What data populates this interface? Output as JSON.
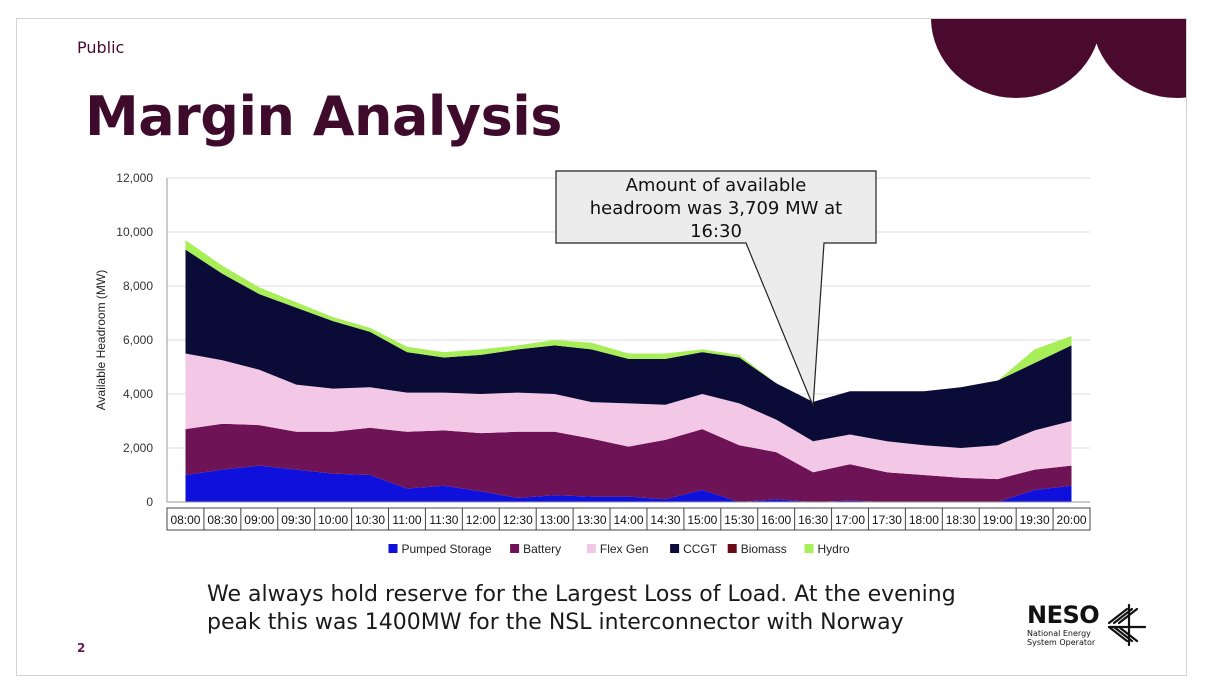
{
  "slide": {
    "classification": "Public",
    "title": "Margin Analysis",
    "caption_line1": "We always hold reserve for the Largest Loss of Load. At the evening",
    "caption_line2": "peak this was 1400MW for the NSL interconnector with Norway",
    "page_number": "2",
    "logo": {
      "word": "NESO",
      "sub_line1": "National Energy",
      "sub_line2": "System Operator",
      "icon": "union-flag-mark-icon"
    },
    "colors": {
      "title": "#3e0b2c",
      "decoration": "#4a0a2e"
    }
  },
  "chart_data": {
    "type": "area",
    "stacked": true,
    "ylabel": "Available Headroom (MW)",
    "xlabel": "",
    "ylim": [
      0,
      12000
    ],
    "yticks": [
      0,
      2000,
      4000,
      6000,
      8000,
      10000,
      12000
    ],
    "ytick_labels": [
      "0",
      "2,000",
      "4,000",
      "6,000",
      "8,000",
      "10,000",
      "12,000"
    ],
    "grid": true,
    "legend_position": "bottom",
    "categories": [
      "08:00",
      "08:30",
      "09:00",
      "09:30",
      "10:00",
      "10:30",
      "11:00",
      "11:30",
      "12:00",
      "12:30",
      "13:00",
      "13:30",
      "14:00",
      "14:30",
      "15:00",
      "15:30",
      "16:00",
      "16:30",
      "17:00",
      "17:30",
      "18:00",
      "18:30",
      "19:00",
      "19:30",
      "20:00"
    ],
    "series": [
      {
        "name": "Pumped Storage",
        "color": "#1010dd",
        "values": [
          1000,
          1200,
          1350,
          1200,
          1050,
          1000,
          500,
          600,
          400,
          150,
          250,
          200,
          200,
          100,
          450,
          0,
          100,
          0,
          50,
          0,
          0,
          0,
          0,
          450,
          600
        ]
      },
      {
        "name": "Battery",
        "color": "#6e1456",
        "values": [
          1700,
          1700,
          1500,
          1400,
          1550,
          1750,
          2100,
          2050,
          2150,
          2450,
          2350,
          2150,
          1850,
          2200,
          2250,
          2100,
          1750,
          1100,
          1350,
          1100,
          1000,
          900,
          850,
          750,
          750
        ]
      },
      {
        "name": "Flex Gen",
        "color": "#f2c8e6",
        "values": [
          2800,
          2350,
          2050,
          1750,
          1600,
          1500,
          1450,
          1400,
          1450,
          1450,
          1400,
          1350,
          1600,
          1300,
          1300,
          1550,
          1200,
          1150,
          1100,
          1150,
          1100,
          1100,
          1250,
          1450,
          1650
        ]
      },
      {
        "name": "CCGT",
        "color": "#0b0b38",
        "values": [
          3850,
          3200,
          2800,
          2850,
          2500,
          2050,
          1500,
          1300,
          1450,
          1600,
          1800,
          1950,
          1650,
          1700,
          1550,
          1700,
          1350,
          1459,
          1600,
          1850,
          2000,
          2250,
          2400,
          2500,
          2800
        ]
      },
      {
        "name": "Biomass",
        "color": "#6a0a14",
        "values": [
          0,
          0,
          0,
          0,
          0,
          0,
          0,
          0,
          0,
          0,
          0,
          0,
          0,
          0,
          0,
          0,
          0,
          0,
          0,
          0,
          0,
          0,
          0,
          0,
          0
        ]
      },
      {
        "name": "Hydro",
        "color": "#a8ee58",
        "values": [
          350,
          300,
          250,
          200,
          150,
          150,
          200,
          200,
          200,
          150,
          200,
          250,
          200,
          200,
          100,
          100,
          0,
          0,
          0,
          0,
          0,
          0,
          0,
          500,
          350
        ]
      }
    ],
    "annotation": {
      "line1": "Amount  of available",
      "line2": "headroom was 3,709 MW at",
      "line3": "16:30",
      "x": "16:30",
      "y": 3709
    }
  }
}
